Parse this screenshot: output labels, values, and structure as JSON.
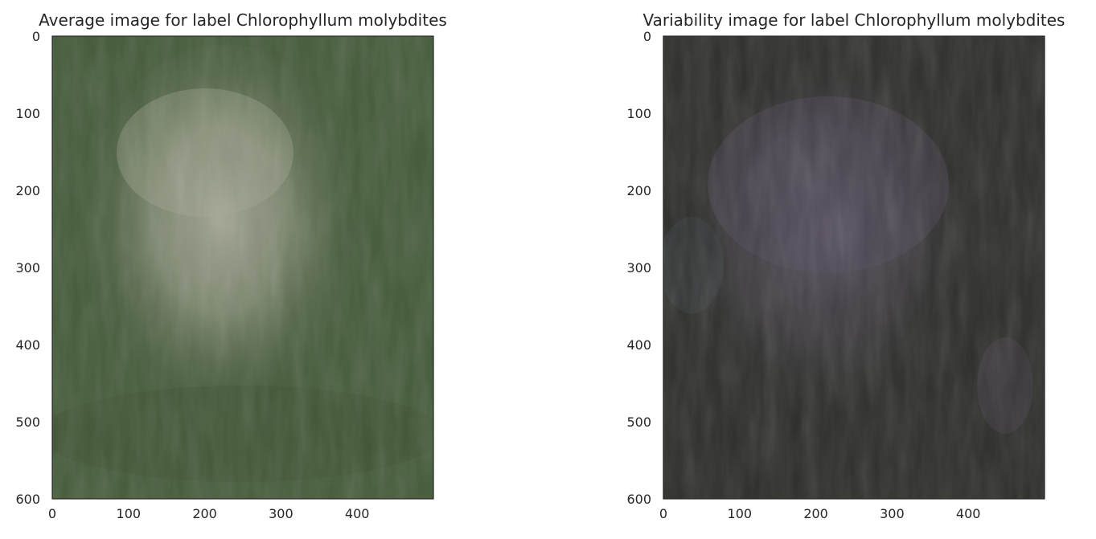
{
  "chart_data": [
    {
      "type": "heatmap",
      "title": "Average image for label Chlorophyllum molybdites",
      "xlabel": "",
      "ylabel": "",
      "xlim": [
        0,
        500
      ],
      "ylim": [
        600,
        0
      ],
      "xticks": [
        0,
        100,
        200,
        300,
        400
      ],
      "yticks": [
        0,
        100,
        200,
        300,
        400,
        500,
        600
      ],
      "grid": false,
      "colors": {
        "background": "#3f5634",
        "mid": "#55674a",
        "center": "#a9aa99"
      }
    },
    {
      "type": "heatmap",
      "title": "Variability image for label Chlorophyllum molybdites",
      "xlabel": "",
      "ylabel": "",
      "xlim": [
        0,
        500
      ],
      "ylim": [
        600,
        0
      ],
      "xticks": [
        0,
        100,
        200,
        300,
        400
      ],
      "yticks": [
        0,
        100,
        200,
        300,
        400,
        500,
        600
      ],
      "grid": false,
      "colors": {
        "background": "#2d2d2a",
        "mid": "#3e3a3e",
        "center": "#5c5565"
      }
    }
  ]
}
